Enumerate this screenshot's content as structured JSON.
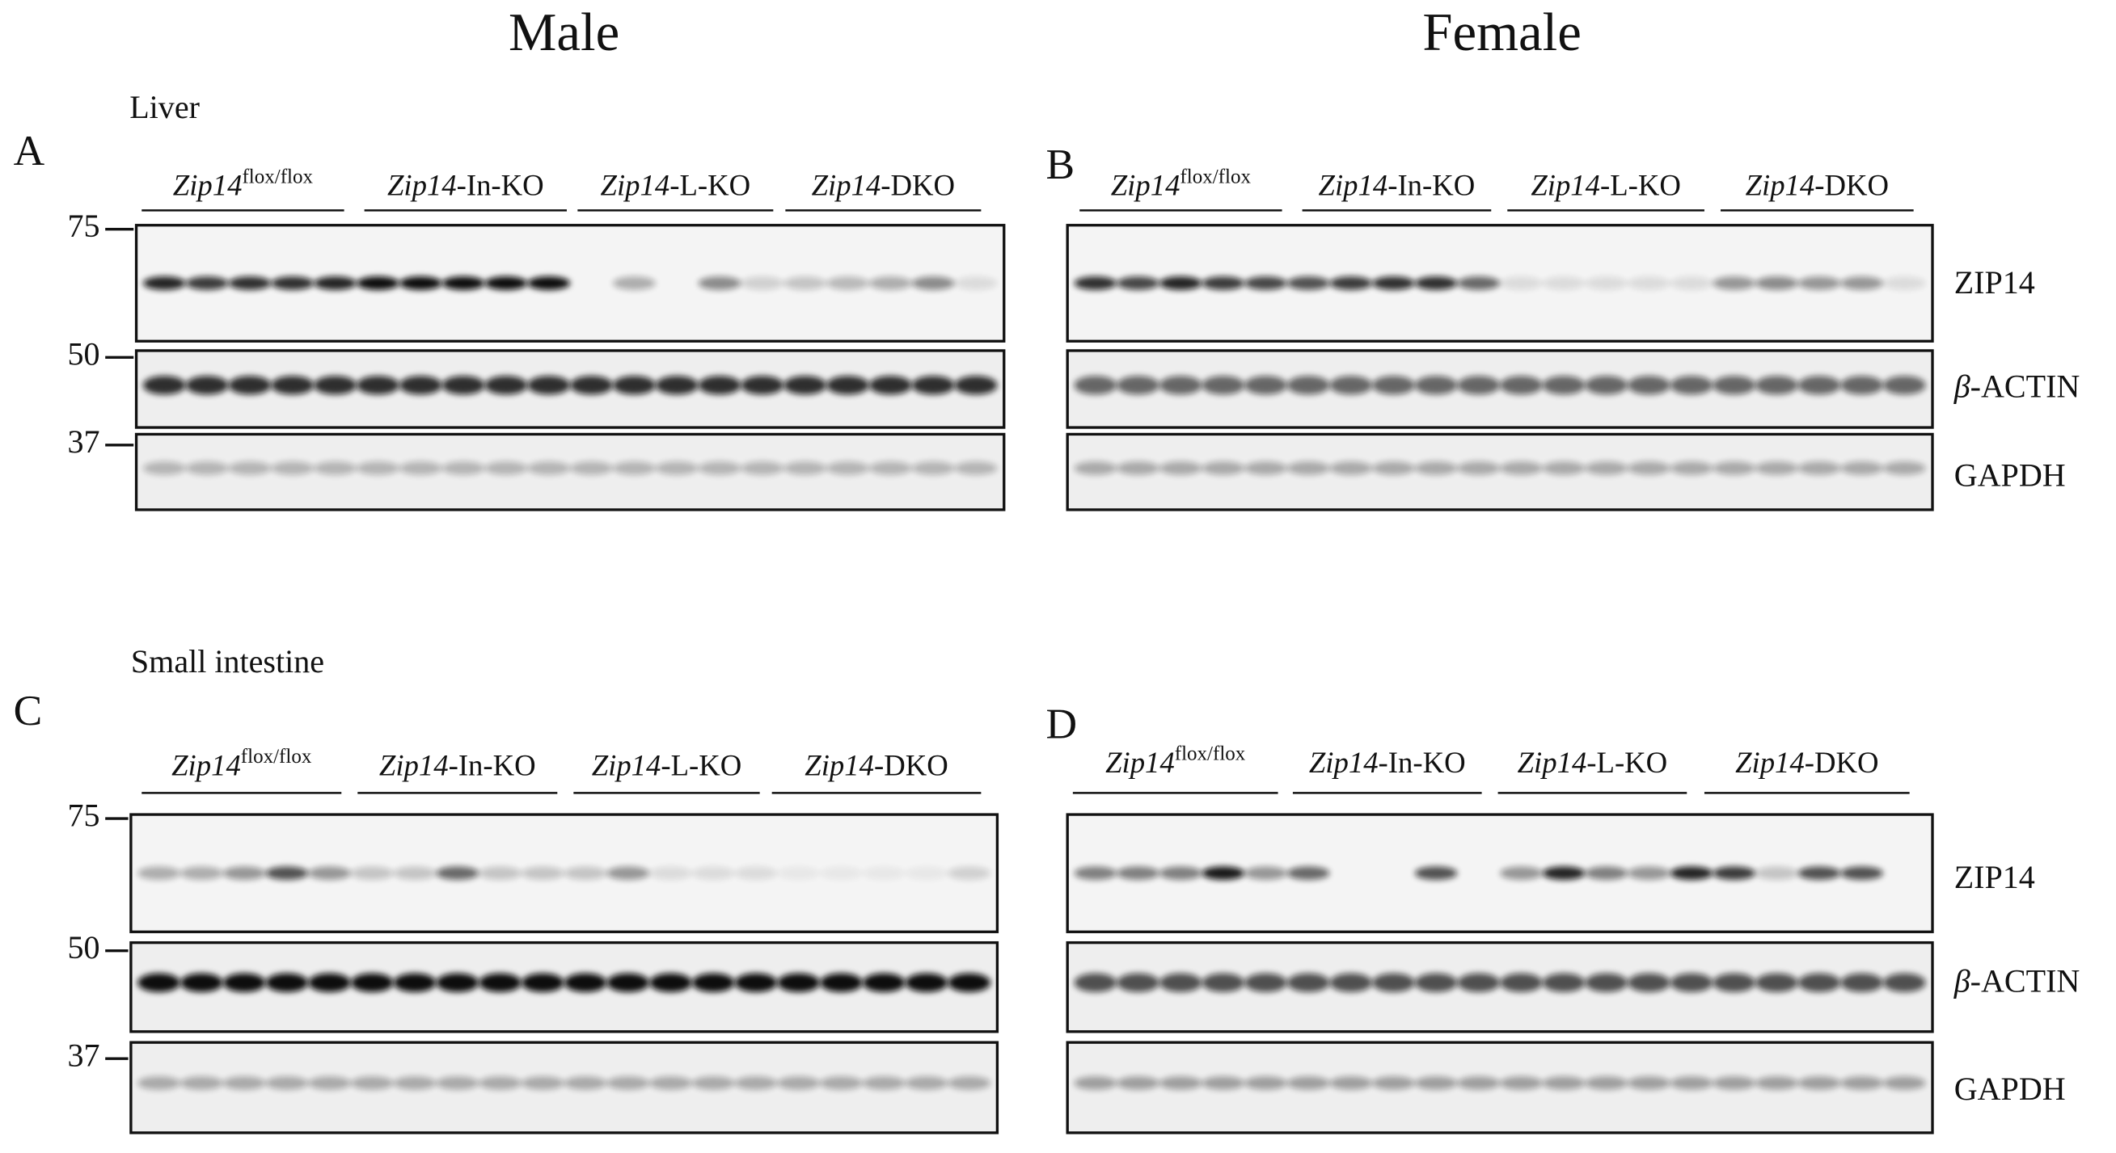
{
  "header": {
    "left_title": "Male",
    "right_title": "Female"
  },
  "sections": [
    {
      "label": "Liver",
      "panels": [
        {
          "letter": "A",
          "groups": [
            {
              "italic": "Zip14",
              "sup": "flox/flox"
            },
            {
              "italic": "Zip14",
              "suffix": "-In-KO"
            },
            {
              "italic": "Zip14",
              "suffix": "-L-KO"
            },
            {
              "italic": "Zip14",
              "suffix": "-DKO"
            }
          ],
          "markers": [
            75,
            50,
            37
          ]
        },
        {
          "letter": "B",
          "groups": [
            {
              "italic": "Zip14",
              "sup": "flox/flox"
            },
            {
              "italic": "Zip14",
              "suffix": "-In-KO"
            },
            {
              "italic": "Zip14",
              "suffix": "-L-KO"
            },
            {
              "italic": "Zip14",
              "suffix": "-DKO"
            }
          ],
          "bands": [
            {
              "text": "ZIP14"
            },
            {
              "italic": "β",
              "text": "-ACTIN"
            },
            {
              "text": "GAPDH"
            }
          ]
        }
      ]
    },
    {
      "label": "Small intestine",
      "panels": [
        {
          "letter": "C",
          "groups": [
            {
              "italic": "Zip14",
              "sup": "flox/flox"
            },
            {
              "italic": "Zip14",
              "suffix": "-In-KO"
            },
            {
              "italic": "Zip14",
              "suffix": "-L-KO"
            },
            {
              "italic": "Zip14",
              "suffix": "-DKO"
            }
          ],
          "markers": [
            75,
            50,
            37
          ]
        },
        {
          "letter": "D",
          "groups": [
            {
              "italic": "Zip14",
              "sup": "flox/flox"
            },
            {
              "italic": "Zip14",
              "suffix": "-In-KO"
            },
            {
              "italic": "Zip14",
              "suffix": "-L-KO"
            },
            {
              "italic": "Zip14",
              "suffix": "-DKO"
            }
          ],
          "bands": [
            {
              "text": "ZIP14"
            },
            {
              "italic": "β",
              "text": "-ACTIN"
            },
            {
              "text": "GAPDH"
            }
          ]
        }
      ]
    }
  ]
}
